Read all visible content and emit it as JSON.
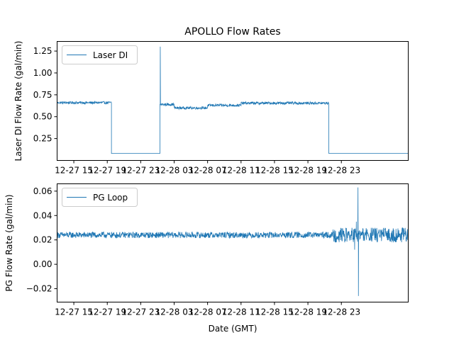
{
  "chart_data": [
    {
      "type": "line",
      "title": "APOLLO Flow Rates",
      "xlabel": "",
      "ylabel": "Laser DI Flow Rate (gal/min)",
      "xlim": [
        -2,
        40
      ],
      "ylim": [
        0.0,
        1.36
      ],
      "x_ticks": [
        {
          "x": 0,
          "label": "12-27 15"
        },
        {
          "x": 4,
          "label": "12-27 19"
        },
        {
          "x": 8,
          "label": "12-27 23"
        },
        {
          "x": 12,
          "label": "12-28 03"
        },
        {
          "x": 16,
          "label": "12-28 07"
        },
        {
          "x": 20,
          "label": "12-28 11"
        },
        {
          "x": 24,
          "label": "12-28 15"
        },
        {
          "x": 28,
          "label": "12-28 19"
        },
        {
          "x": 32,
          "label": "12-28 23"
        }
      ],
      "y_ticks": [
        {
          "y": 0.25,
          "label": "0.25"
        },
        {
          "y": 0.5,
          "label": "0.50"
        },
        {
          "y": 0.75,
          "label": "0.75"
        },
        {
          "y": 1.0,
          "label": "1.00"
        },
        {
          "y": 1.25,
          "label": "1.25"
        }
      ],
      "color": "#1f77b4",
      "legend": {
        "placement": "upper-left",
        "entries": [
          "Laser DI"
        ]
      },
      "series": [
        {
          "name": "Laser DI",
          "segments": [
            {
              "x0": -2,
              "x1": 4.5,
              "base": 0.66,
              "noise": 0.015
            },
            {
              "x0": 4.5,
              "x1": 10.3,
              "base": 0.08,
              "noise": 0.0
            },
            {
              "x0": 10.3,
              "x1": 12,
              "base": 0.64,
              "noise": 0.015
            },
            {
              "x0": 12,
              "x1": 16,
              "base": 0.6,
              "noise": 0.015
            },
            {
              "x0": 16,
              "x1": 20,
              "base": 0.63,
              "noise": 0.015
            },
            {
              "x0": 20,
              "x1": 30.5,
              "base": 0.655,
              "noise": 0.015
            },
            {
              "x0": 30.5,
              "x1": 40,
              "base": 0.08,
              "noise": 0.0
            }
          ],
          "spikes": [
            {
              "x": 10.35,
              "y": 1.3
            }
          ]
        }
      ]
    },
    {
      "type": "line",
      "title": "",
      "xlabel": "Date (GMT)",
      "ylabel": "PG Flow Rate (gal/min)",
      "xlim": [
        -2,
        40
      ],
      "ylim": [
        -0.031,
        0.066
      ],
      "x_ticks": [
        {
          "x": 0,
          "label": "12-27 15"
        },
        {
          "x": 4,
          "label": "12-27 19"
        },
        {
          "x": 8,
          "label": "12-27 23"
        },
        {
          "x": 12,
          "label": "12-28 03"
        },
        {
          "x": 16,
          "label": "12-28 07"
        },
        {
          "x": 20,
          "label": "12-28 11"
        },
        {
          "x": 24,
          "label": "12-28 15"
        },
        {
          "x": 28,
          "label": "12-28 19"
        },
        {
          "x": 32,
          "label": "12-28 23"
        }
      ],
      "y_ticks": [
        {
          "y": -0.02,
          "label": "−0.02"
        },
        {
          "y": 0.0,
          "label": "0.00"
        },
        {
          "y": 0.02,
          "label": "0.02"
        },
        {
          "y": 0.04,
          "label": "0.04"
        },
        {
          "y": 0.06,
          "label": "0.06"
        }
      ],
      "color": "#1f77b4",
      "legend": {
        "placement": "upper-left",
        "entries": [
          "PG Loop"
        ]
      },
      "series": [
        {
          "name": "PG Loop",
          "segments": [
            {
              "x0": -2,
              "x1": 31,
              "base": 0.024,
              "noise": 0.0025
            },
            {
              "x0": 31,
              "x1": 40,
              "base": 0.024,
              "noise": 0.006
            }
          ],
          "spikes": [
            {
              "x": 34.0,
              "y": 0.063
            },
            {
              "x": 34.05,
              "y": -0.026
            },
            {
              "x": 33.8,
              "y": 0.035
            },
            {
              "x": 33.6,
              "y": 0.012
            }
          ]
        }
      ]
    }
  ]
}
